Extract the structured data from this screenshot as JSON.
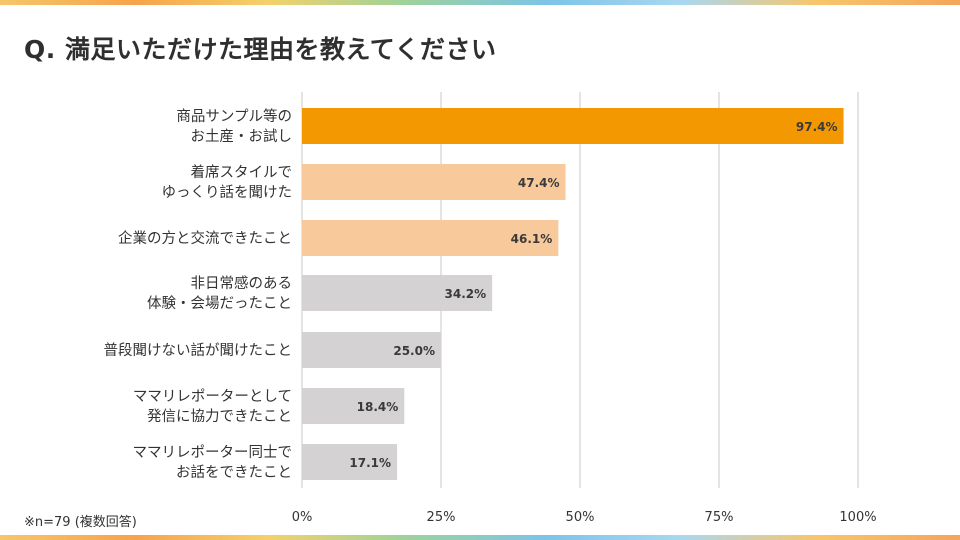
{
  "title": "Q. 満足いただけた理由を教えてください",
  "note": "※n=79 (複数回答)",
  "colors": {
    "primary": "#f39800",
    "secondary": "#f8c99a",
    "neutral": "#d4d2d3",
    "grid": "#c8c8c8",
    "text": "#333333"
  },
  "chart_data": {
    "type": "bar",
    "orientation": "horizontal",
    "categories": [
      [
        "商品サンプル等の",
        "お土産・お試し"
      ],
      [
        "着席スタイルで",
        "ゆっくり話を聞けた"
      ],
      [
        "企業の方と交流できたこと"
      ],
      [
        "非日常感のある",
        "体験・会場だったこと"
      ],
      [
        "普段聞けない話が聞けたこと"
      ],
      [
        "ママリレポーターとして",
        "発信に協力できたこと"
      ],
      [
        "ママリレポーター同士で",
        "お話をできたこと"
      ]
    ],
    "values": [
      97.4,
      47.4,
      46.1,
      34.2,
      25.0,
      18.4,
      17.1
    ],
    "value_labels": [
      "97.4%",
      "47.4%",
      "46.1%",
      "34.2%",
      "25.0%",
      "18.4%",
      "17.1%"
    ],
    "bar_color_keys": [
      "primary",
      "secondary",
      "secondary",
      "neutral",
      "neutral",
      "neutral",
      "neutral"
    ],
    "xlim": [
      0,
      100
    ],
    "xticks": [
      0,
      25,
      50,
      75,
      100
    ],
    "xtick_labels": [
      "0%",
      "25%",
      "50%",
      "75%",
      "100%"
    ],
    "grid": true,
    "legend": "none"
  }
}
